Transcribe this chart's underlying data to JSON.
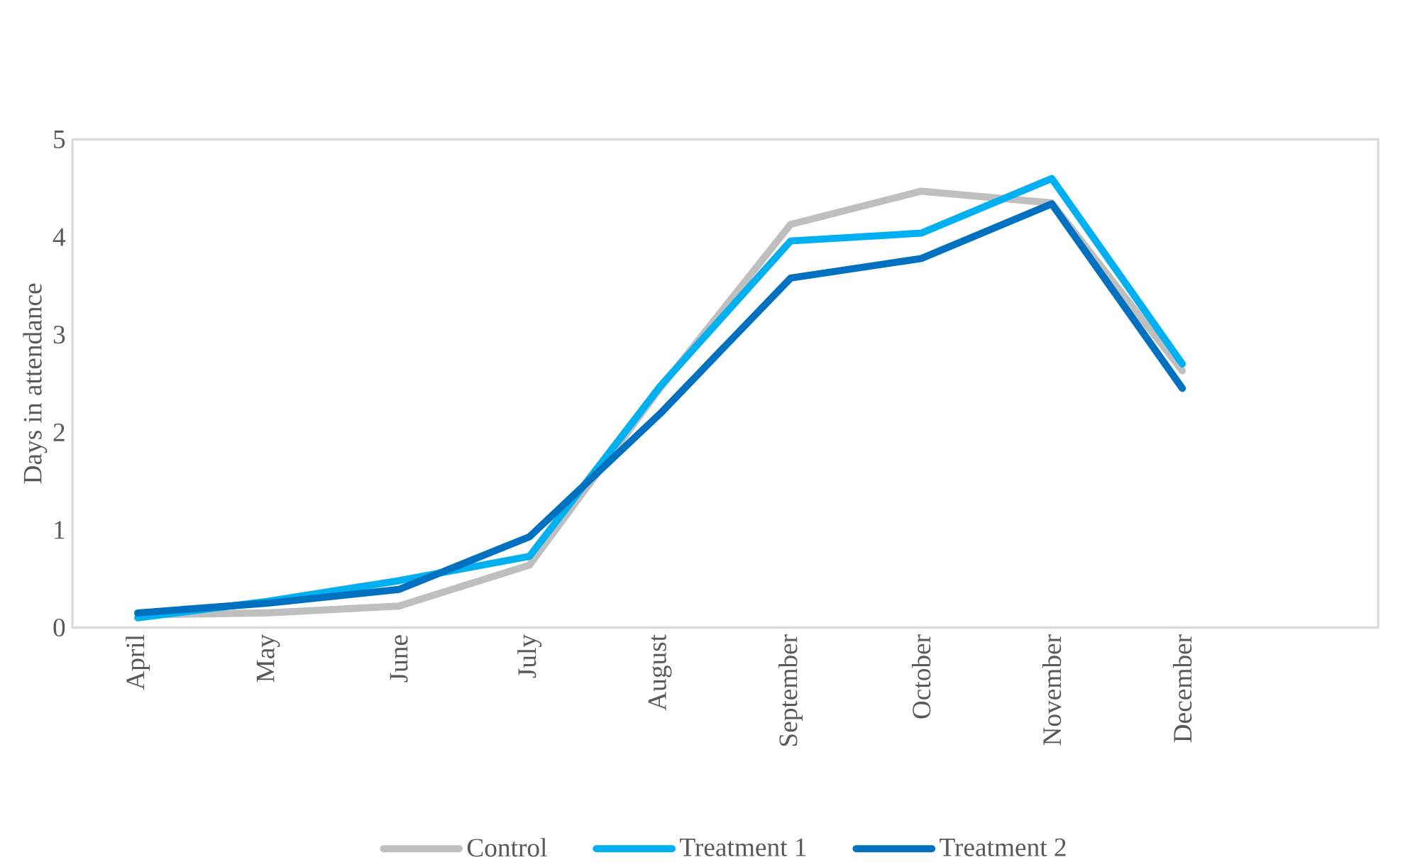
{
  "chart_data": {
    "type": "line",
    "ylabel": "Days in attendance",
    "categories": [
      "April",
      "May",
      "June",
      "July",
      "August",
      "September",
      "October",
      "November",
      "December",
      null
    ],
    "series": [
      {
        "name": "Control",
        "color": "#bfbfbf",
        "values": [
          0.13,
          0.15,
          0.22,
          0.64,
          2.45,
          4.13,
          4.47,
          4.35,
          2.63,
          null
        ]
      },
      {
        "name": "Treatment 1",
        "color": "#00b0f0",
        "values": [
          0.1,
          0.27,
          0.48,
          0.73,
          2.47,
          3.96,
          4.04,
          4.6,
          2.7,
          null
        ]
      },
      {
        "name": "Treatment 2",
        "color": "#0070c0",
        "values": [
          0.15,
          0.25,
          0.39,
          0.93,
          2.19,
          3.58,
          3.78,
          4.34,
          2.45,
          null
        ]
      }
    ],
    "ylim": [
      0,
      5
    ],
    "yticks": [
      0,
      1,
      2,
      3,
      4,
      5
    ],
    "legend": "bottom",
    "line_style": "solid"
  }
}
